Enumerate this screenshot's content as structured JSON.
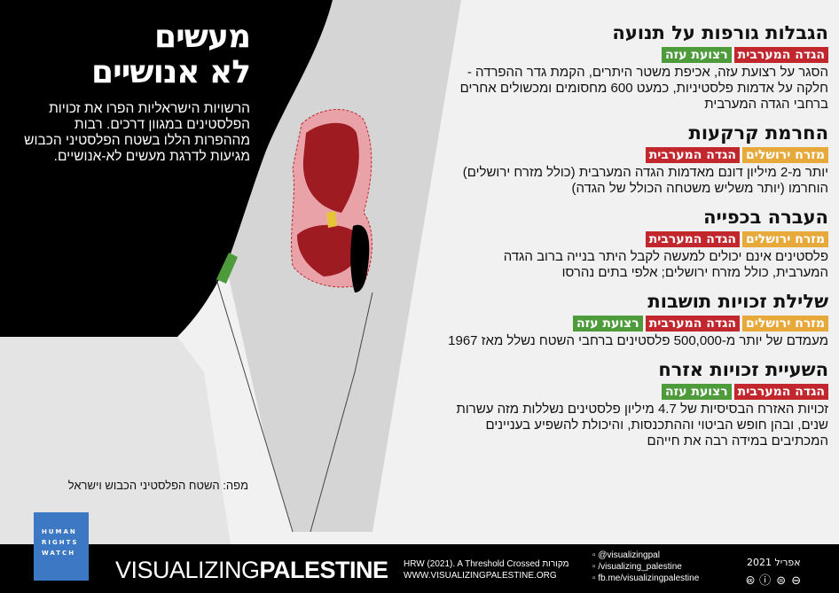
{
  "colors": {
    "west_bank": "#c1272d",
    "gaza": "#4d9b3a",
    "east_jerusalem": "#e6a93a",
    "hrw_blue": "#3c78c3"
  },
  "title": {
    "line1": "מעשים",
    "line2": "לא אנושיים"
  },
  "intro": "הרשויות הישראליות הפרו את זכויות הפלסטינים במגוון דרכים. רבות מההפרות הללו בשטח הפלסטיני הכבוש מגיעות לדרגת מעשים לא-אנושיים.",
  "map_caption": "מפה: השטח הפלסטיני הכבוש וישראל",
  "tag_labels": {
    "west_bank": "הגדה המערבית",
    "gaza": "רצועת עזה",
    "east_jerusalem": "מזרח ירושלים"
  },
  "sections": [
    {
      "heading": "הגבלות גורפות על תנועה",
      "tags": [
        "west_bank",
        "gaza"
      ],
      "text": "הסגר על רצועת עזה, אכיפת משטר היתרים, הקמת גדר ההפרדה - חלקה על אדמות פלסטיניות, כמעט 600 מחסומים ומכשולים אחרים ברחבי הגדה המערבית"
    },
    {
      "heading": "החרמת קרקעות",
      "tags": [
        "east_jerusalem",
        "west_bank"
      ],
      "text": "יותר מ-2 מיליון דונם מאדמות הגדה המערבית (כולל מזרח ירושלים) הוחרמו (יותר משליש משטחה הכולל של הגדה)"
    },
    {
      "heading": "העברה בכפייה",
      "tags": [
        "east_jerusalem",
        "west_bank"
      ],
      "text": "פלסטינים אינם יכולים למעשה לקבל היתר בנייה ברוב הגדה המערבית, כולל מזרח ירושלים; אלפי בתים נהרסו"
    },
    {
      "heading": "שלילת זכויות תושבות",
      "tags": [
        "east_jerusalem",
        "west_bank",
        "gaza"
      ],
      "text": "מעמדם של יותר מ-500,000 פלסטינים ברחבי השטח נשלל מאז 1967"
    },
    {
      "heading": "השעיית זכויות אזרח",
      "tags": [
        "west_bank",
        "gaza"
      ],
      "text": "זכויות האזרח הבסיסיות של 4.7 מיליון פלסטינים נשללות מזה עשרות שנים, ובהן חופש הביטוי וההתכנסות, והיכולת להשפיע בעניינים המכתיבים במידה רבה את חייהם"
    }
  ],
  "footer": {
    "hrw_logo": [
      "HUMAN",
      "RIGHTS",
      "WATCH"
    ],
    "brand_light": "VISUALIZING",
    "brand_bold": "PALESTINE",
    "source_line": "HRW (2021). A Threshold Crossed מקורות",
    "website": "WWW.VISUALIZINGPALESTINE.ORG",
    "social": [
      "@visualizingpal",
      "/visualizing_palestine",
      "fb.me/visualizingpalestine"
    ],
    "date": "אפריל 2021",
    "license_icons": "🅭 ⓘ ⊜ ⊖"
  }
}
